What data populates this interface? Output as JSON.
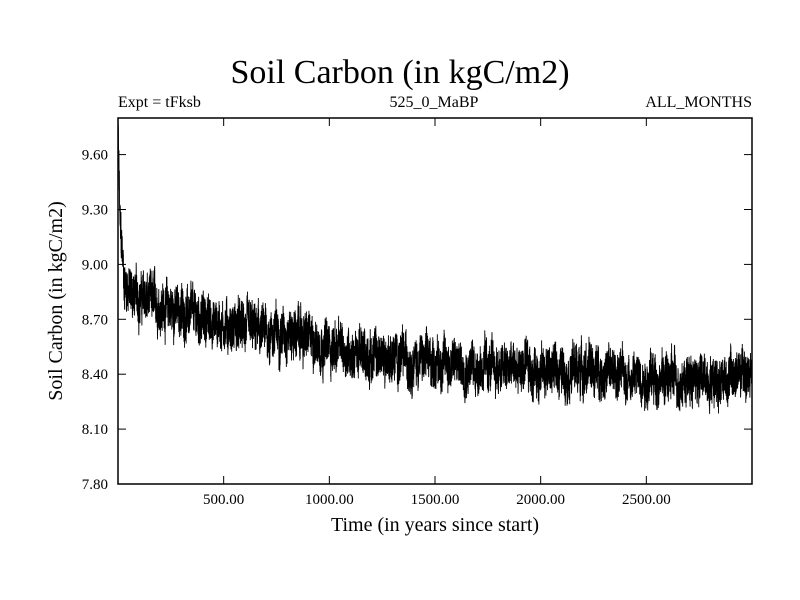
{
  "chart_data": {
    "type": "line",
    "title": "Soil Carbon (in kgC/m2)",
    "subtitle_left": "Expt = tFksb",
    "subtitle_center": "525_0_MaBP",
    "subtitle_right": "ALL_MONTHS",
    "xlabel": "Time (in years since start)",
    "ylabel": "Soil Carbon (in kgC/m2)",
    "xlim": [
      0,
      3000
    ],
    "ylim": [
      7.8,
      9.8
    ],
    "xticks": [
      500,
      1000,
      1500,
      2000,
      2500
    ],
    "xtick_labels": [
      "500.00",
      "1000.00",
      "1500.00",
      "2000.00",
      "2500.00"
    ],
    "yticks": [
      7.8,
      8.1,
      8.4,
      8.7,
      9.0,
      9.3,
      9.6
    ],
    "ytick_labels": [
      "7.80",
      "8.10",
      "8.40",
      "8.70",
      "9.00",
      "9.30",
      "9.60"
    ],
    "series": [
      {
        "name": "Soil Carbon",
        "trend": {
          "x": [
            0,
            10,
            30,
            60,
            100,
            200,
            300,
            500,
            700,
            800,
            1000,
            1200,
            1500,
            1800,
            2000,
            2200,
            2500,
            2700,
            3000
          ],
          "y": [
            9.75,
            9.2,
            8.9,
            8.85,
            8.82,
            8.78,
            8.74,
            8.67,
            8.62,
            8.64,
            8.55,
            8.5,
            8.47,
            8.43,
            8.42,
            8.43,
            8.38,
            8.37,
            8.4
          ]
        },
        "noise_amplitude": 0.14
      }
    ]
  }
}
